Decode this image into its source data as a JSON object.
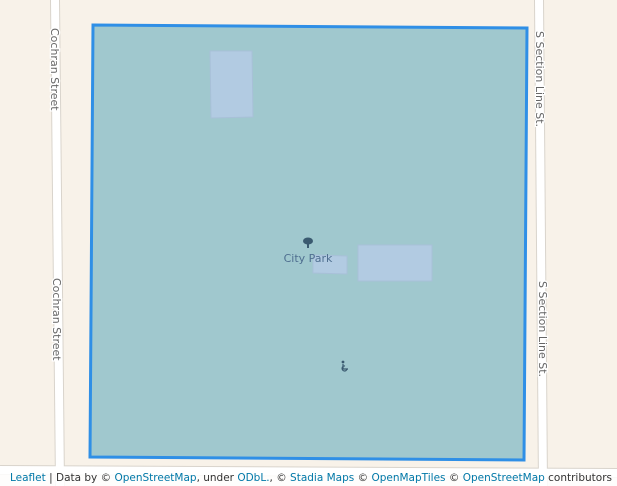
{
  "map": {
    "streets": {
      "west": "Cochran Street",
      "east": "S Section Line St."
    },
    "poi": {
      "label": "City Park",
      "icon": "tree-icon"
    },
    "secondary_icon": "wheelchair-icon",
    "colors": {
      "land": "#f8f2e9",
      "park_fill": "#a0c8ce",
      "outline": "#2f8fe6",
      "building": "#b2cbe2",
      "road": "#ffffff"
    }
  },
  "attribution": {
    "leaflet": "Leaflet",
    "sep": " | Data by © ",
    "osm": "OpenStreetMap",
    "under": ", under ",
    "odbl": "ODbL.",
    "c1": ", © ",
    "stadia": "Stadia Maps",
    "c2": " © ",
    "omt": "OpenMapTiles",
    "c3": " © ",
    "osm2": "OpenStreetMap",
    "contributors": " contributors"
  }
}
